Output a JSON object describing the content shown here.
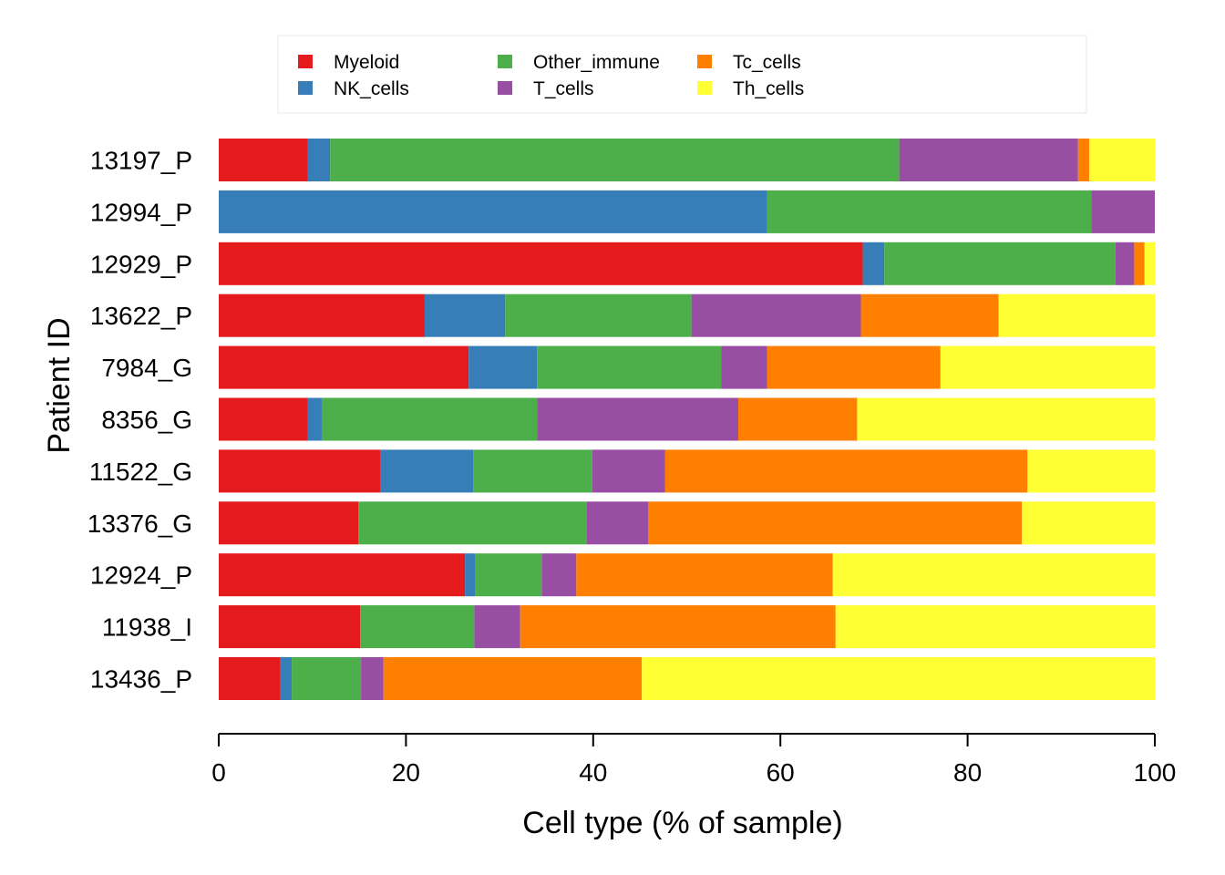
{
  "chart_data": {
    "type": "bar",
    "orientation": "horizontal",
    "stacked": true,
    "title": "",
    "xlabel": "Cell type (% of sample)",
    "ylabel": "Patient ID",
    "xlim": [
      0,
      100
    ],
    "xticks": [
      0,
      20,
      40,
      60,
      80,
      100
    ],
    "grid": false,
    "legend_position": "top",
    "categories": [
      "13197_P",
      "12994_P",
      "12929_P",
      "13622_P",
      "7984_G",
      "8356_G",
      "11522_G",
      "13376_G",
      "12924_P",
      "11938_I",
      "13436_P"
    ],
    "series": [
      {
        "name": "Myeloid",
        "color": "#E41A1C",
        "values": [
          9.5,
          0,
          68.8,
          22.0,
          26.7,
          9.5,
          17.3,
          14.9,
          26.3,
          15.1,
          6.6
        ]
      },
      {
        "name": "NK_cells",
        "color": "#377EB8",
        "values": [
          2.4,
          58.6,
          2.3,
          8.6,
          7.3,
          1.5,
          9.9,
          0,
          1.1,
          0,
          1.2
        ]
      },
      {
        "name": "Other_immune",
        "color": "#4DAF4A",
        "values": [
          60.8,
          34.6,
          24.7,
          19.9,
          19.7,
          23.0,
          12.7,
          24.4,
          7.1,
          12.2,
          7.4
        ]
      },
      {
        "name": "T_cells",
        "color": "#984EA3",
        "values": [
          19.1,
          6.8,
          2.0,
          18.1,
          4.9,
          21.5,
          7.8,
          6.6,
          3.7,
          4.9,
          2.4
        ]
      },
      {
        "name": "Tc_cells",
        "color": "#FF7F00",
        "values": [
          1.2,
          0,
          1.1,
          14.7,
          18.5,
          12.7,
          38.7,
          39.9,
          27.4,
          33.7,
          27.6
        ]
      },
      {
        "name": "Th_cells",
        "color": "#FFFF33",
        "values": [
          7.0,
          0,
          1.1,
          16.7,
          22.9,
          31.8,
          13.6,
          14.2,
          34.4,
          34.1,
          54.8
        ]
      }
    ]
  }
}
